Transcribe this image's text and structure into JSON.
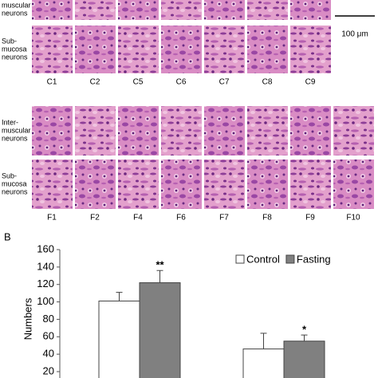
{
  "panel_a": {
    "scale_bar": "100 μm",
    "groups": [
      {
        "row_labels": [
          [
            "muscular",
            "neurons"
          ],
          [
            "Sub-",
            "mucosa",
            "neurons"
          ]
        ],
        "columns": [
          "C1",
          "C2",
          "C5",
          "C6",
          "C7",
          "C8",
          "C9"
        ]
      },
      {
        "row_labels": [
          [
            "Inter-",
            "muscular",
            "neurons"
          ],
          [
            "Sub-",
            "mucosa",
            "neurons"
          ]
        ],
        "columns": [
          "F1",
          "F2",
          "F4",
          "F6",
          "F7",
          "F8",
          "F9",
          "F10"
        ]
      }
    ]
  },
  "chart_data": {
    "type": "bar",
    "panel_label": "B",
    "y_label": "Numbers",
    "categories": [
      null,
      null
    ],
    "series": [
      {
        "name": "Control",
        "color": "#ffffff",
        "values": [
          101,
          46
        ],
        "errors": [
          10,
          18
        ]
      },
      {
        "name": "Fasting",
        "color": "#808080",
        "values": [
          122,
          55
        ],
        "errors": [
          14,
          7
        ],
        "significance": [
          "**",
          "*"
        ]
      }
    ],
    "ylim": [
      0,
      160
    ],
    "yticks": [
      20,
      40,
      60,
      80,
      100,
      120,
      140,
      160
    ]
  }
}
